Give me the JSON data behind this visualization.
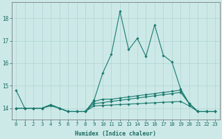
{
  "xlabel": "Humidex (Indice chaleur)",
  "bg_color": "#cce9e7",
  "grid_color": "#aed4d1",
  "line_color": "#1a7a6e",
  "x": [
    0,
    1,
    2,
    3,
    4,
    5,
    6,
    7,
    8,
    9,
    10,
    11,
    12,
    13,
    14,
    15,
    16,
    17,
    18,
    19,
    20,
    21,
    22,
    23
  ],
  "lines": [
    [
      14.8,
      14.0,
      14.0,
      14.0,
      14.1,
      14.0,
      13.85,
      13.85,
      13.85,
      14.35,
      15.55,
      16.4,
      18.3,
      16.6,
      17.1,
      16.3,
      17.7,
      16.35,
      16.05,
      14.85,
      14.2,
      13.85,
      13.85,
      13.85
    ],
    [
      14.0,
      14.0,
      14.0,
      14.0,
      14.15,
      14.0,
      13.85,
      13.85,
      13.85,
      14.3,
      14.4,
      14.4,
      14.45,
      14.5,
      14.55,
      14.6,
      14.65,
      14.7,
      14.75,
      14.8,
      14.2,
      13.85,
      13.85,
      13.85
    ],
    [
      14.0,
      14.0,
      14.0,
      14.0,
      14.15,
      14.0,
      13.85,
      13.85,
      13.85,
      14.2,
      14.25,
      14.3,
      14.35,
      14.4,
      14.45,
      14.5,
      14.55,
      14.6,
      14.65,
      14.7,
      14.2,
      13.85,
      13.85,
      13.85
    ],
    [
      14.0,
      14.0,
      14.0,
      14.0,
      14.15,
      14.0,
      13.85,
      13.85,
      13.85,
      14.1,
      14.12,
      14.14,
      14.16,
      14.18,
      14.2,
      14.22,
      14.24,
      14.26,
      14.28,
      14.3,
      14.1,
      13.85,
      13.85,
      13.85
    ]
  ],
  "yticks": [
    14,
    15,
    16,
    17,
    18
  ],
  "xticks": [
    0,
    1,
    2,
    3,
    4,
    5,
    6,
    7,
    8,
    9,
    10,
    11,
    12,
    13,
    14,
    15,
    16,
    17,
    18,
    19,
    20,
    21,
    22,
    23
  ],
  "ylim": [
    13.5,
    18.7
  ],
  "xlim": [
    -0.5,
    23.5
  ],
  "tick_fontsize": 5.2,
  "xlabel_fontsize": 5.8,
  "lw": 0.8,
  "ms": 1.8
}
